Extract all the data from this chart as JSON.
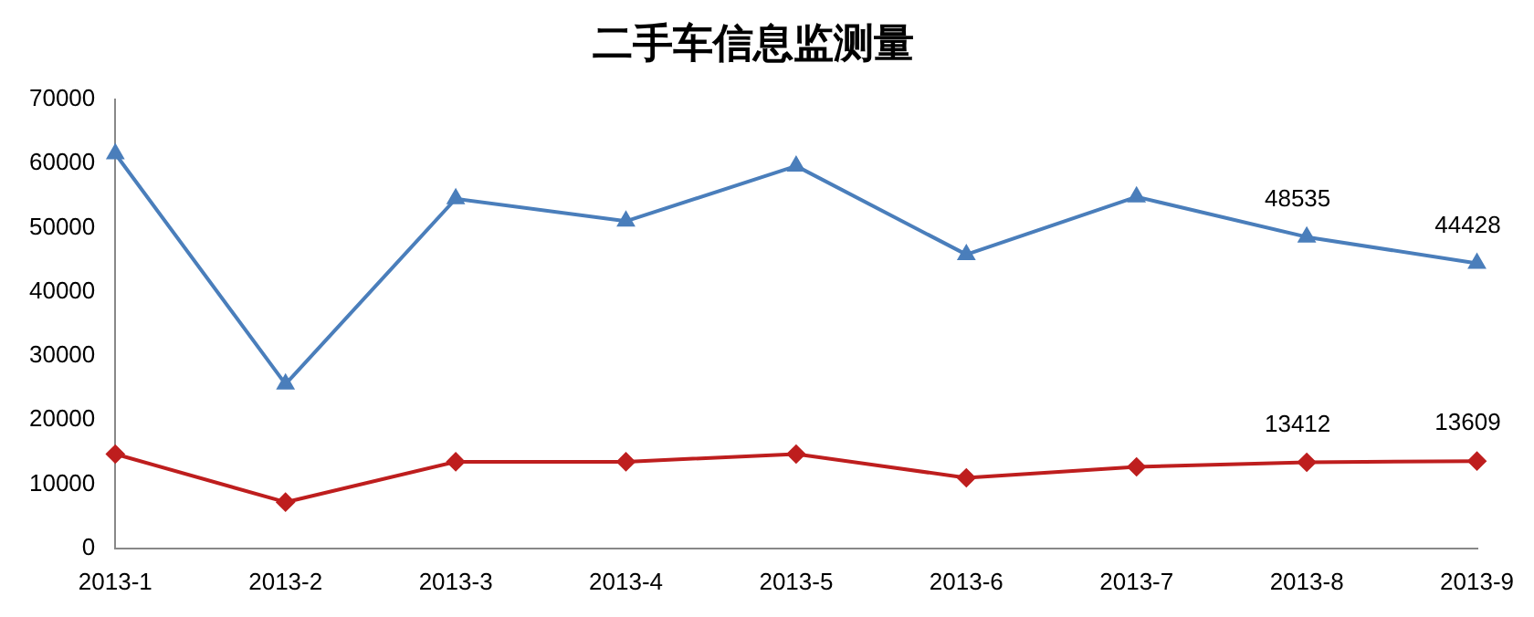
{
  "chart_data": {
    "type": "line",
    "title": "二手车信息监测量",
    "categories": [
      "2013-1",
      "2013-2",
      "2013-3",
      "2013-4",
      "2013-5",
      "2013-6",
      "2013-7",
      "2013-8",
      "2013-9"
    ],
    "series": [
      {
        "color": "#4a7ebb",
        "marker": "triangle",
        "values": [
          61500,
          25600,
          54500,
          51000,
          59600,
          45800,
          54800,
          48535,
          44428
        ],
        "value_labels": [
          null,
          null,
          null,
          null,
          null,
          null,
          null,
          "48535",
          "44428"
        ]
      },
      {
        "color": "#be1e1e",
        "marker": "diamond",
        "values": [
          14700,
          7200,
          13500,
          13500,
          14700,
          11000,
          12700,
          13412,
          13609
        ],
        "value_labels": [
          null,
          null,
          null,
          null,
          null,
          null,
          null,
          "13412",
          "13609"
        ]
      }
    ],
    "ylim": [
      0,
      70000
    ],
    "yticks": [
      0,
      10000,
      20000,
      30000,
      40000,
      50000,
      60000,
      70000
    ],
    "grid": false,
    "legend": false
  }
}
